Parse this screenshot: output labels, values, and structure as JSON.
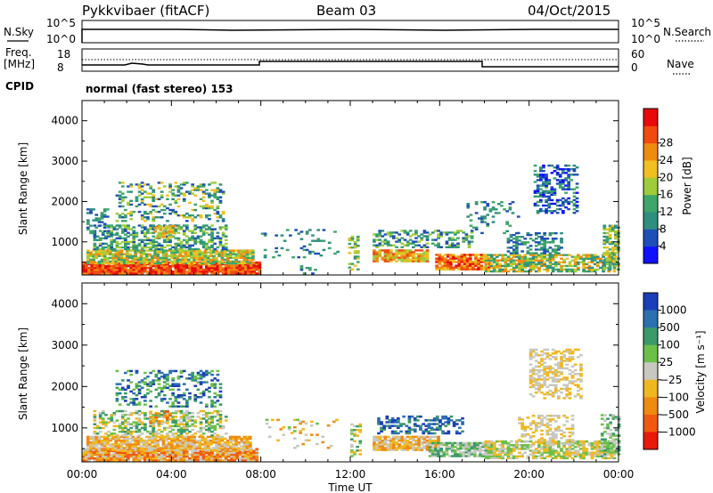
{
  "header": {
    "radar": "Pykkvibaer (fitACF)",
    "beam": "Beam 03",
    "date": "04/Oct/2015"
  },
  "nsky_panel": {
    "left_label": "N.Sky",
    "right_label": "N.Search",
    "left_ticks": [
      "10^5",
      "10^0"
    ],
    "right_ticks": [
      "10^5",
      "10^0"
    ]
  },
  "freq_panel": {
    "left_label_1": "Freq.",
    "left_label_2": "[MHz]",
    "right_label": "Nave",
    "left_ticks": [
      "18",
      "8"
    ],
    "right_ticks": [
      "60",
      "0"
    ],
    "cpid_label": "CPID",
    "cpid_text": "normal (fast stereo) 153"
  },
  "chart_data": [
    {
      "type": "heatmap",
      "name": "power",
      "ylabel": "Slant Range [km]",
      "xlabel": "",
      "yticks": [
        "1000",
        "2000",
        "3000",
        "4000"
      ],
      "ylim": [
        180,
        4500
      ],
      "colorbar": {
        "label": "Power [dB]",
        "ticks": [
          "4",
          "8",
          "12",
          "16",
          "20",
          "24",
          "28"
        ],
        "colors": [
          "#1010ff",
          "#1e4fb8",
          "#2f8f7e",
          "#3fa56a",
          "#9fcc3a",
          "#f0c020",
          "#f08a10",
          "#f04a10",
          "#e80a0a"
        ]
      }
    },
    {
      "type": "heatmap",
      "name": "velocity",
      "ylabel": "Slant Range [km]",
      "xlabel": "Time UT",
      "xticks": [
        "00:00",
        "04:00",
        "08:00",
        "12:00",
        "16:00",
        "20:00",
        "00:00"
      ],
      "yticks": [
        "1000",
        "2000",
        "3000",
        "4000"
      ],
      "ylim": [
        180,
        4500
      ],
      "colorbar": {
        "label": "Velocity [m s⁻¹]",
        "ticks": [
          "1000",
          "500",
          "100",
          "25",
          "−25",
          "−100",
          "−500",
          "−1000"
        ],
        "colors": [
          "#1a3fb8",
          "#2d70b0",
          "#3a9a6a",
          "#6cc04a",
          "#c8c8c0",
          "#f0b820",
          "#f08a10",
          "#f05a10",
          "#e81a0a"
        ]
      }
    }
  ]
}
